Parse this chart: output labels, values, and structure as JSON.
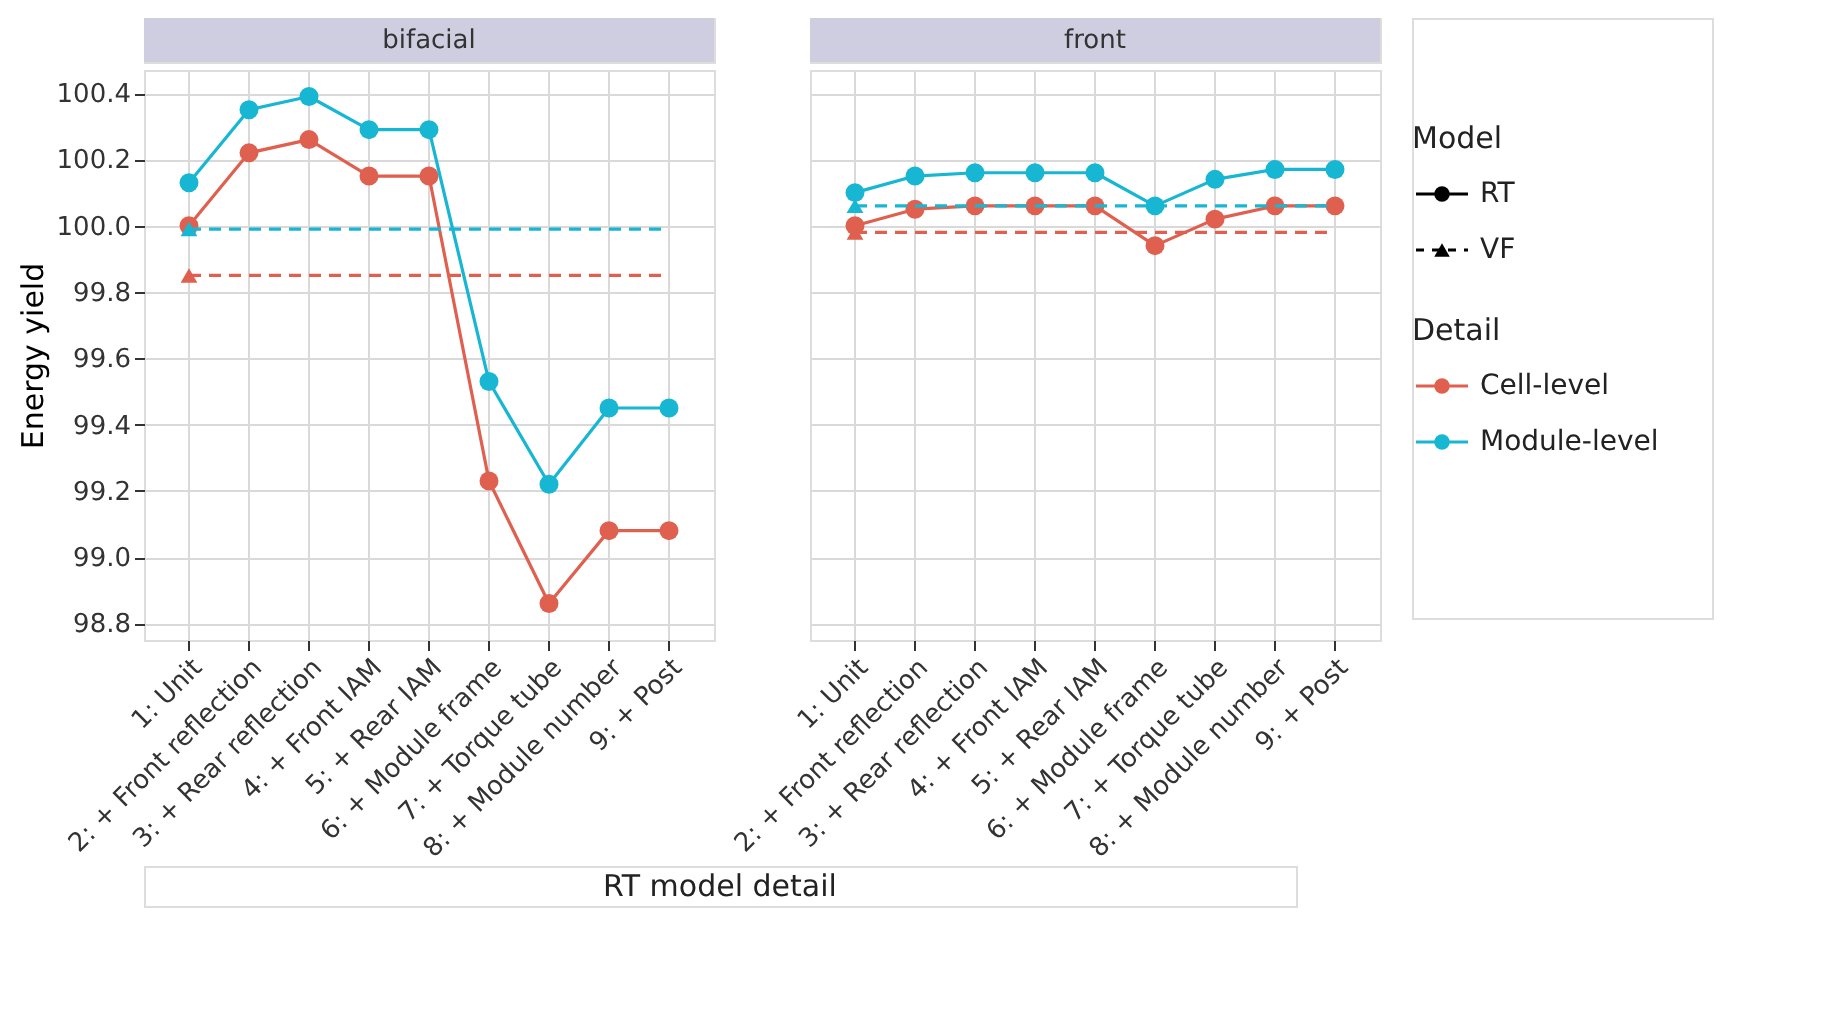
{
  "chart_data": [
    {
      "type": "line",
      "title": "bifacial",
      "ylabel": "Energy yield",
      "xlabel": "RT model detail",
      "categories": [
        "1: Unit",
        "2: + Front reflection",
        "3: + Rear reflection",
        "4: + Front IAM",
        "5: + Rear IAM",
        "6: + Module frame",
        "7: + Torque tube",
        "8: + Module number",
        "9: + Post"
      ],
      "series": [
        {
          "name": "Cell-level",
          "color": "#e0604f",
          "values": [
            100.0,
            100.22,
            100.26,
            100.15,
            100.15,
            99.23,
            98.86,
            99.08,
            99.08
          ]
        },
        {
          "name": "Module-level",
          "color": "#17b6d2",
          "values": [
            100.13,
            100.35,
            100.39,
            100.29,
            100.29,
            99.53,
            99.22,
            99.45,
            99.45
          ]
        },
        {
          "type": "scatter",
          "marker": "triangle",
          "color": "#e0604f",
          "x": [
            "1: Unit"
          ],
          "values": [
            99.85
          ]
        },
        {
          "type": "scatter",
          "marker": "triangle",
          "color": "#17b6d2",
          "x": [
            "1: Unit"
          ],
          "values": [
            99.99
          ]
        }
      ],
      "ref_lines": [
        {
          "axis": "y",
          "value": 99.85,
          "color": "#e0604f",
          "line_style": "dashed"
        },
        {
          "axis": "y",
          "value": 99.99,
          "color": "#17b6d2",
          "line_style": "dashed"
        }
      ],
      "marker": "circle",
      "line_style": "solid",
      "ylim": [
        98.75,
        100.47
      ],
      "yticks": [
        98.8,
        {
          "value": 99.0,
          "label": "99.0"
        },
        99.2,
        99.4,
        99.6,
        99.8,
        {
          "value": 100.0,
          "label": "100.0"
        },
        100.2,
        100.4
      ],
      "grid": true,
      "legend": "right",
      "legend_title": "Detail",
      "annotations": [
        "Model",
        "RT",
        "VF"
      ]
    },
    {
      "type": "line",
      "title": "front",
      "categories": [
        "1: Unit",
        "2: + Front reflection",
        "3: + Rear reflection",
        "4: + Front IAM",
        "5: + Rear IAM",
        "6: + Module frame",
        "7: + Torque tube",
        "8: + Module number",
        "9: + Post"
      ],
      "series": [
        {
          "name": "Cell-level",
          "color": "#e0604f",
          "values": [
            100.0,
            100.05,
            100.06,
            100.06,
            100.06,
            99.94,
            100.02,
            100.06,
            100.06
          ]
        },
        {
          "name": "Module-level",
          "color": "#17b6d2",
          "values": [
            100.1,
            100.15,
            100.16,
            100.16,
            100.16,
            100.06,
            100.14,
            100.17,
            100.17
          ]
        },
        {
          "type": "scatter",
          "marker": "triangle",
          "color": "#e0604f",
          "x": [
            "1: Unit"
          ],
          "values": [
            99.98
          ]
        },
        {
          "type": "scatter",
          "marker": "triangle",
          "color": "#17b6d2",
          "x": [
            "1: Unit"
          ],
          "values": [
            100.06
          ]
        }
      ],
      "ref_lines": [
        {
          "axis": "y",
          "value": 99.98,
          "color": "#e0604f",
          "line_style": "dashed"
        },
        {
          "axis": "y",
          "value": 100.06,
          "color": "#17b6d2",
          "line_style": "dashed"
        }
      ],
      "marker": "circle",
      "line_style": "solid",
      "ylim": [
        98.75,
        100.47
      ],
      "grid": true,
      "tick_labels": "x",
      "legend": "right",
      "yticks": [
        98.8,
        99.0,
        99.2,
        99.4,
        99.6,
        99.8,
        100.0,
        100.2,
        100.4
      ]
    }
  ]
}
